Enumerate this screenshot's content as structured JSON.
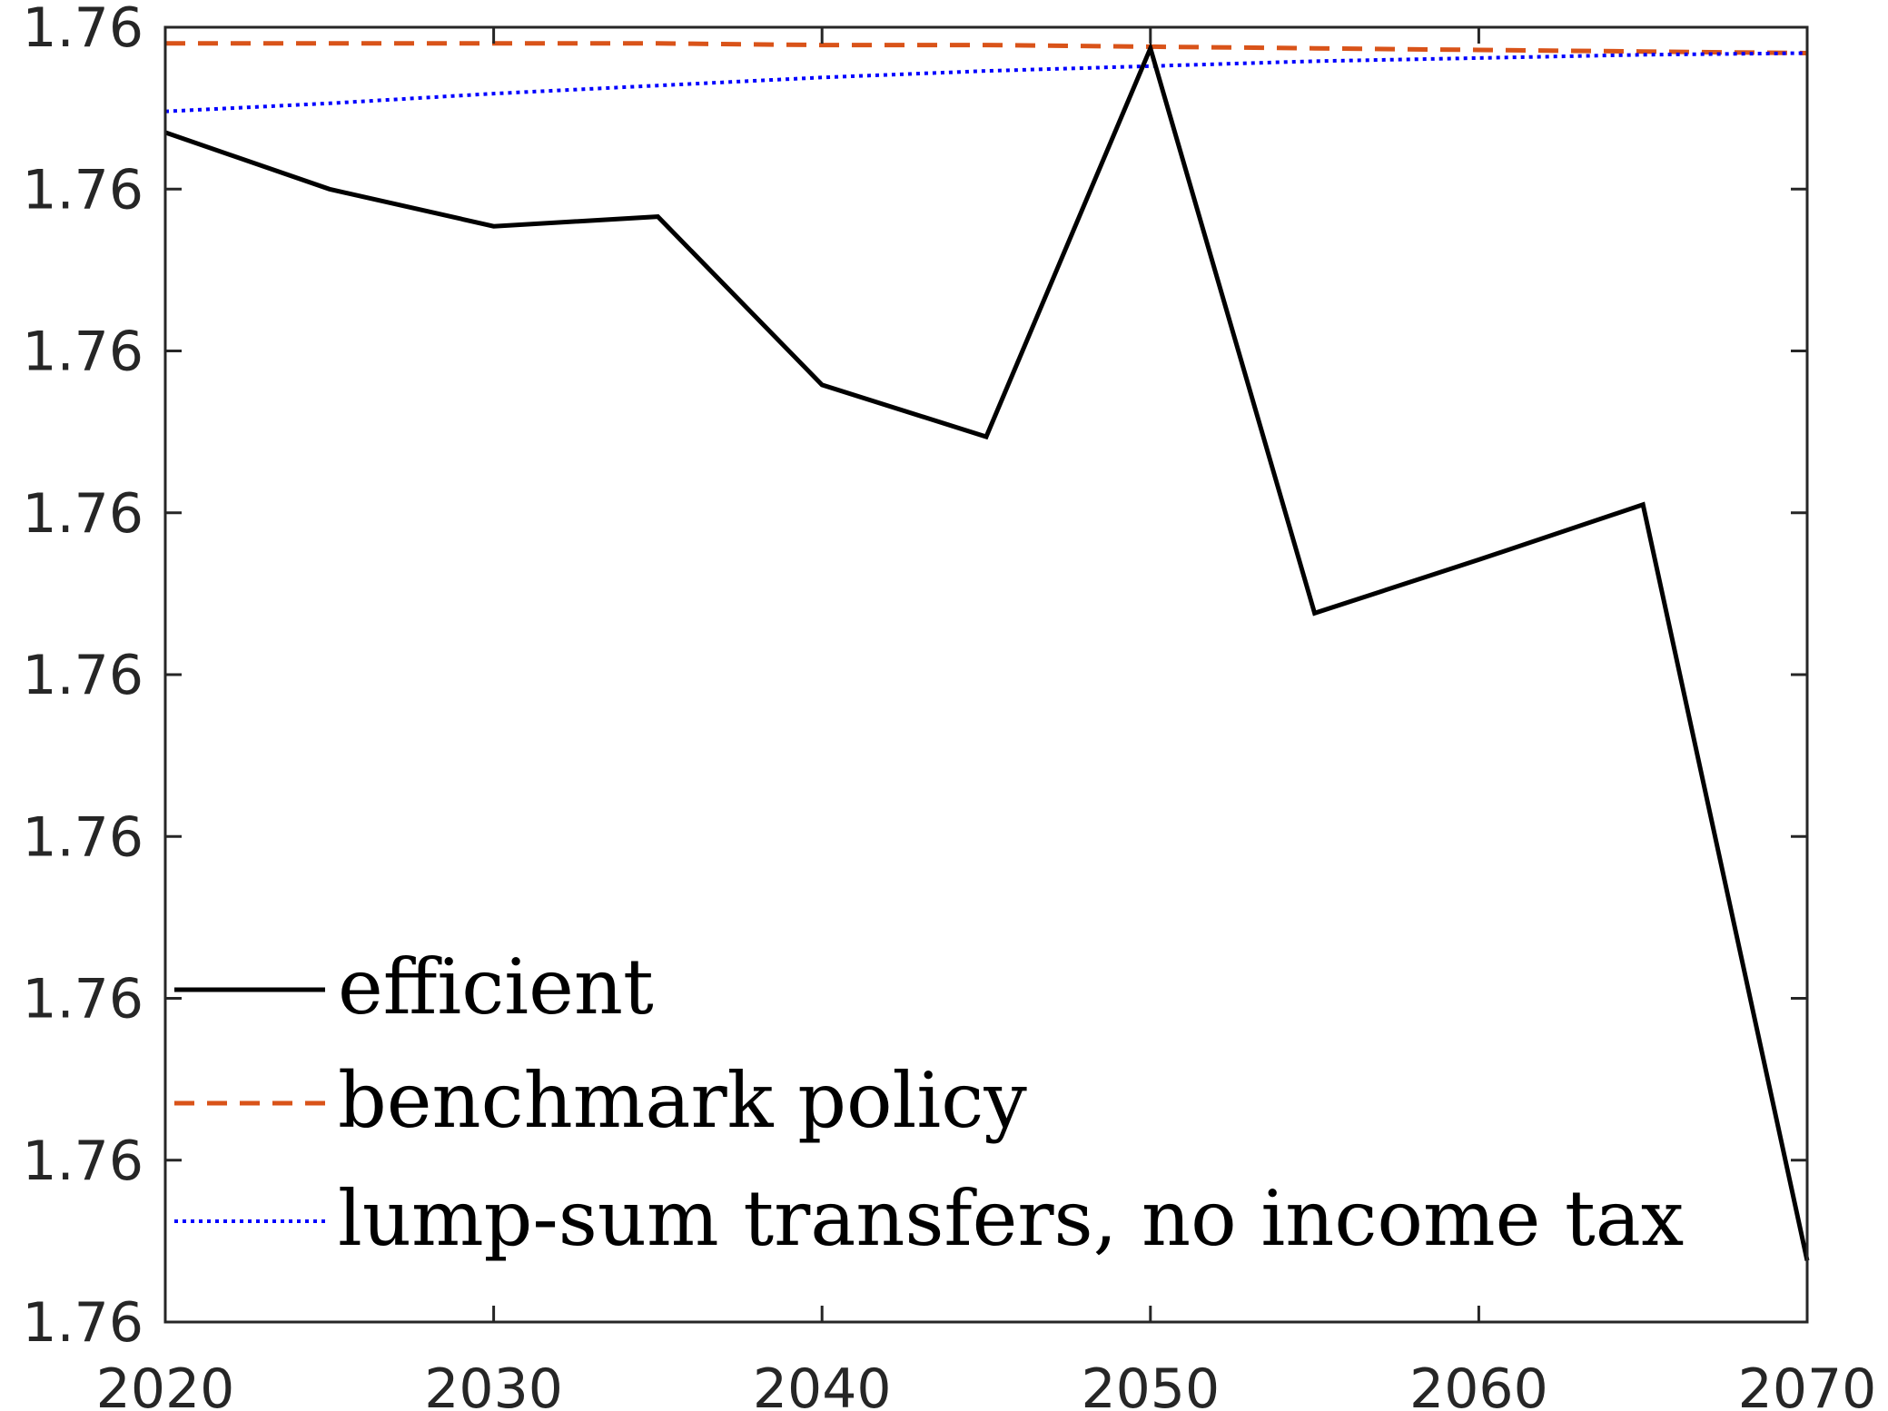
{
  "chart_data": {
    "type": "line",
    "x": [
      2020,
      2025,
      2030,
      2035,
      2040,
      2045,
      2050,
      2055,
      2060,
      2065,
      2070
    ],
    "x_ticks": [
      "2020",
      "2030",
      "2040",
      "2050",
      "2060",
      "2070"
    ],
    "y_ticks": [
      "1.76",
      "1.76",
      "1.76",
      "1.76",
      "1.76",
      "1.76",
      "1.76",
      "1.76",
      "1.76"
    ],
    "xlim": [
      2020,
      2070
    ],
    "ylim": [
      0,
      8
    ],
    "grid": false,
    "legend_position": "bottom-left",
    "series": [
      {
        "name": "efficient",
        "color": "#000000",
        "style": "solid",
        "values": [
          7.35,
          7.0,
          6.77,
          6.83,
          5.79,
          5.47,
          7.87,
          4.38,
          4.71,
          5.05,
          0.38
        ]
      },
      {
        "name": "benchmark policy",
        "color": "#D95319",
        "style": "dashed",
        "values": [
          7.9,
          7.9,
          7.9,
          7.9,
          7.89,
          7.89,
          7.88,
          7.87,
          7.86,
          7.85,
          7.84
        ]
      },
      {
        "name": "lump-sum transfers, no income tax",
        "color": "#0000FF",
        "style": "dotted",
        "values": [
          7.48,
          7.53,
          7.59,
          7.64,
          7.69,
          7.73,
          7.76,
          7.79,
          7.81,
          7.83,
          7.84
        ]
      }
    ]
  }
}
